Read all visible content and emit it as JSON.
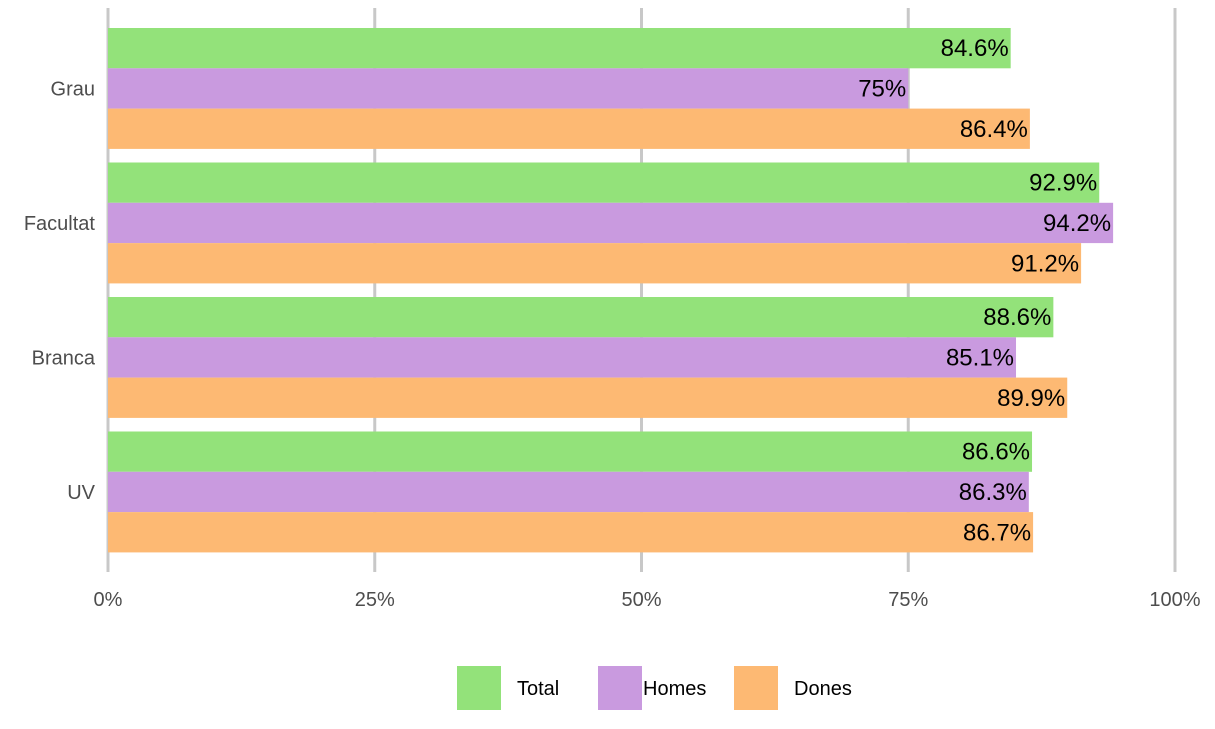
{
  "chart_data": {
    "type": "bar",
    "orientation": "horizontal",
    "categories": [
      "Grau",
      "Facultat",
      "Branca",
      "UV"
    ],
    "series": [
      {
        "name": "Total",
        "color": "#93e27a",
        "values": [
          84.6,
          92.9,
          88.6,
          86.6
        ],
        "labels": [
          "84.6%",
          "92.9%",
          "88.6%",
          "86.6%"
        ]
      },
      {
        "name": "Homes",
        "color": "#c99adf",
        "values": [
          75,
          94.2,
          85.1,
          86.3
        ],
        "labels": [
          "75%",
          "94.2%",
          "85.1%",
          "86.3%"
        ]
      },
      {
        "name": "Dones",
        "color": "#fdb973",
        "values": [
          86.4,
          91.2,
          89.9,
          86.7
        ],
        "labels": [
          "86.4%",
          "91.2%",
          "89.9%",
          "86.7%"
        ]
      }
    ],
    "xlim": [
      0,
      100
    ],
    "xticks": [
      0,
      25,
      50,
      75,
      100
    ],
    "xtick_labels": [
      "0%",
      "25%",
      "50%",
      "75%",
      "100%"
    ],
    "title": "",
    "xlabel": "",
    "ylabel": "",
    "grid": "vertical",
    "legend_position": "bottom"
  }
}
